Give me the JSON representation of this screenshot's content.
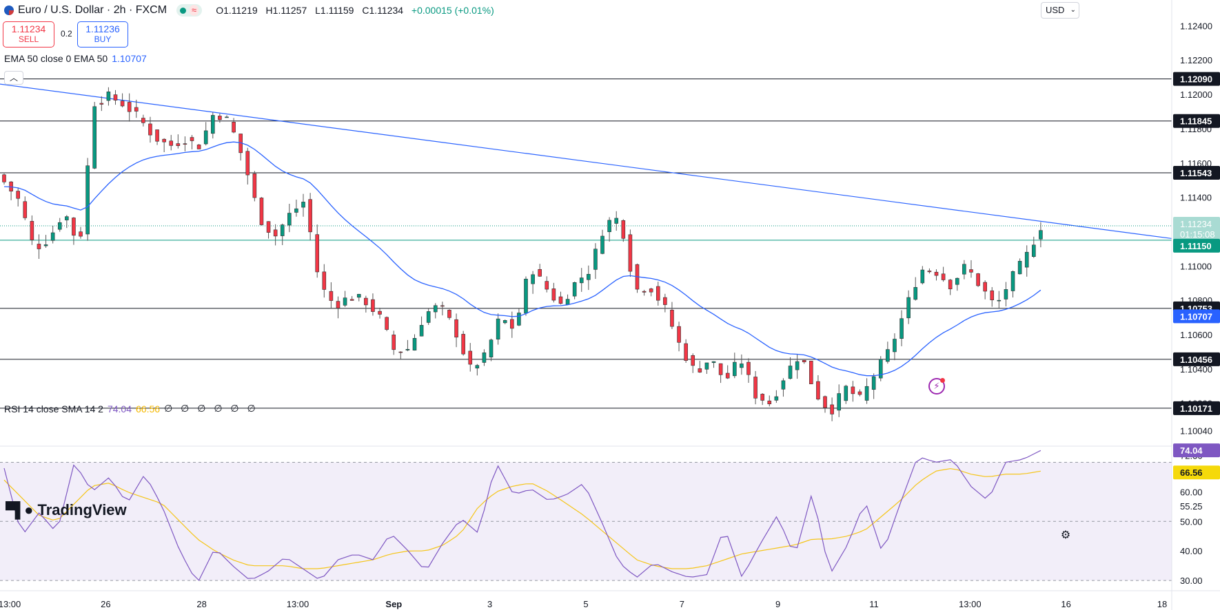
{
  "header": {
    "symbol_title": "Euro / U.S. Dollar · 2h · FXCM",
    "ohlc": {
      "open": "O1.11219",
      "high": "H1.11257",
      "low": "L1.11159",
      "close": "C1.11234",
      "change": "+0.00015 (+0.01%)"
    },
    "status_icon": "market-open-dot",
    "wave_icon": "≈"
  },
  "trade": {
    "sell_price": "1.11234",
    "sell_label": "SELL",
    "spread": "0.2",
    "buy_price": "1.11236",
    "buy_label": "BUY"
  },
  "ema_legend": {
    "label": "EMA 50 close 0 EMA 50",
    "value": "1.10707"
  },
  "rsi_legend": {
    "label": "RSI 14 close SMA 14 2",
    "rsi_value": "74.04",
    "sma_value": "66.56",
    "empty_values": "∅ ∅ ∅ ∅ ∅ ∅"
  },
  "currency": "USD",
  "logo_text": "TradingView",
  "colors": {
    "up": "#089981",
    "down": "#f23645",
    "ema": "#2962ff",
    "rsi": "#7e57c2",
    "rsi_sma": "#f5c518",
    "support_line": "#089981",
    "trendline": "#2962ff"
  },
  "chart_data": [
    {
      "type": "candlestick",
      "symbol": "EURUSD",
      "timeframe": "2h",
      "y_axis_ticks": [
        "1.12400",
        "1.12200",
        "1.12000",
        "1.11800",
        "1.11600",
        "1.11400",
        "1.11000",
        "1.10800",
        "1.10600",
        "1.10400",
        "1.10200",
        "1.10040"
      ],
      "ylim": [
        1.0995,
        1.1255
      ],
      "x_axis_labels": [
        "13:00",
        "26",
        "28",
        "13:00",
        "Sep",
        "3",
        "5",
        "7",
        "9",
        "11",
        "13:00",
        "16",
        "18"
      ],
      "horizontal_levels": [
        {
          "price": 1.1209,
          "label": "1.12090",
          "style": "black"
        },
        {
          "price": 1.11845,
          "label": "1.11845",
          "style": "black"
        },
        {
          "price": 1.11543,
          "label": "1.11543",
          "style": "black"
        },
        {
          "price": 1.1115,
          "label": "1.11150",
          "style": "green"
        },
        {
          "price": 1.10753,
          "label": "1.10753",
          "style": "black"
        },
        {
          "price": 1.10456,
          "label": "1.10456",
          "style": "black"
        },
        {
          "price": 1.10171,
          "label": "1.10171",
          "style": "black"
        }
      ],
      "trendline": {
        "from_price": 1.1206,
        "to_price": 1.1116
      },
      "last_price": {
        "value": "1.11234",
        "countdown": "01:15:08",
        "price": 1.11234
      },
      "ema_price_label": {
        "value": "1.10707",
        "price": 1.10707
      },
      "close_anchors": [
        1.1149,
        1.1138,
        1.111,
        1.1116,
        1.1132,
        1.1111,
        1.1195,
        1.1199,
        1.1194,
        1.1186,
        1.1175,
        1.117,
        1.1174,
        1.117,
        1.119,
        1.1184,
        1.116,
        1.1128,
        1.1117,
        1.113,
        1.1138,
        1.1089,
        1.1077,
        1.1082,
        1.108,
        1.107,
        1.105,
        1.1052,
        1.1072,
        1.1077,
        1.1063,
        1.104,
        1.1047,
        1.107,
        1.1063,
        1.11,
        1.1088,
        1.1077,
        1.109,
        1.1098,
        1.1125,
        1.1128,
        1.1086,
        1.1088,
        1.1075,
        1.1053,
        1.1038,
        1.1046,
        1.1033,
        1.1046,
        1.1025,
        1.102,
        1.1037,
        1.1049,
        1.1026,
        1.1015,
        1.1029,
        1.1022,
        1.1038,
        1.1052,
        1.1075,
        1.1098,
        1.1097,
        1.1089,
        1.11,
        1.1088,
        1.1076,
        1.1092,
        1.1105,
        1.1123
      ]
    },
    {
      "type": "line",
      "name": "RSI 14",
      "y_axis_ticks": [
        "72.36",
        "60.00",
        "55.25",
        "50.00",
        "40.00",
        "30.00"
      ],
      "ylim": [
        27,
        75
      ],
      "bands": [
        30,
        50,
        70
      ],
      "rsi_last": 74.04,
      "sma_last": 66.56,
      "rsi_anchors": [
        68,
        45,
        53,
        46,
        70,
        60,
        65,
        56,
        66,
        55,
        40,
        29,
        41,
        35,
        30,
        33,
        38,
        34,
        30,
        37,
        39,
        37,
        46,
        40,
        33,
        43,
        51,
        46,
        70,
        59,
        61,
        57,
        59,
        63,
        50,
        36,
        31,
        36,
        33,
        31,
        32,
        48,
        31,
        42,
        52,
        38,
        60,
        32,
        42,
        57,
        39,
        56,
        72,
        70,
        71,
        62,
        57,
        70,
        71,
        74
      ],
      "sma_anchors": [
        64,
        58,
        52,
        50,
        56,
        62,
        63,
        60,
        58,
        56,
        50,
        44,
        40,
        37,
        35,
        35,
        35,
        34,
        34,
        35,
        36,
        37,
        39,
        40,
        40,
        42,
        46,
        55,
        60,
        62,
        63,
        60,
        56,
        52,
        47,
        42,
        37,
        35,
        34,
        34,
        35,
        37,
        39,
        40,
        41,
        42,
        44,
        44,
        45,
        47,
        52,
        57,
        63,
        67,
        68,
        66,
        65,
        66,
        66,
        67
      ]
    }
  ]
}
